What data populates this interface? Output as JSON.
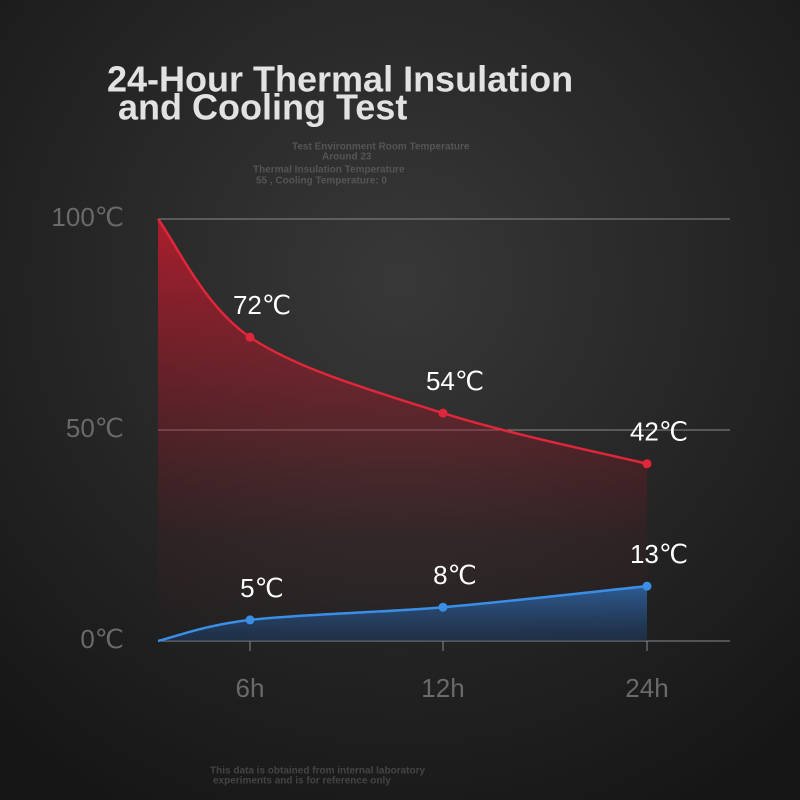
{
  "chart_data": {
    "type": "line",
    "title": [
      "24-Hour Thermal Insulation",
      "and Cooling Test"
    ],
    "notes": [
      "Test Environment Room Temperature",
      "Around 23",
      "Thermal Insulation Temperature",
      "55 , Cooling Temperature: 0"
    ],
    "footnote": [
      "This data is obtained from internal laboratory",
      "experiments and is for reference only"
    ],
    "categories": [
      null,
      "6h",
      "12h",
      "24h"
    ],
    "series": [
      {
        "color": "#e0263a",
        "values": [
          100,
          72,
          54,
          42
        ],
        "value_labels": [
          null,
          "72℃",
          "54℃",
          "42℃"
        ]
      },
      {
        "color": "#3a8ee6",
        "values": [
          0,
          5,
          8,
          13
        ],
        "value_labels": [
          null,
          "5℃",
          "8℃",
          "13℃"
        ]
      }
    ],
    "ylim": [
      0,
      100
    ],
    "yticks": [
      {
        "value": 0,
        "label": "0℃"
      },
      {
        "value": 50,
        "label": "50℃"
      },
      {
        "value": 100,
        "label": "100℃"
      }
    ],
    "grid": true
  }
}
